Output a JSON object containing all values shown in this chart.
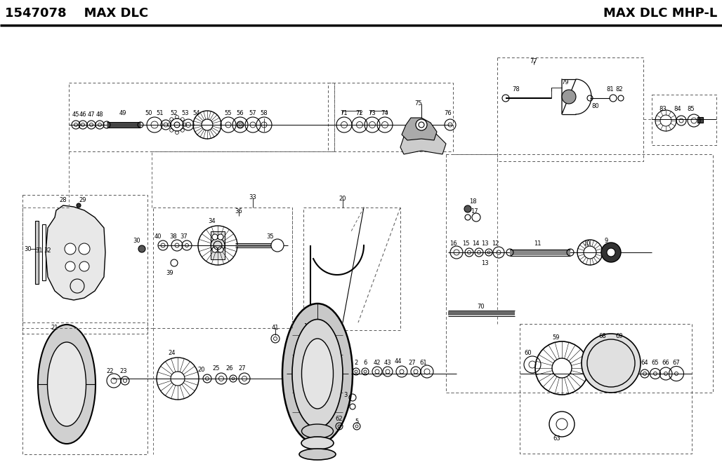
{
  "title_left": "1547078    MAX DLC",
  "title_right": "MAX DLC MHP-L",
  "bg_color": "#ffffff",
  "fig_width": 10.28,
  "fig_height": 6.59,
  "dpi": 100
}
